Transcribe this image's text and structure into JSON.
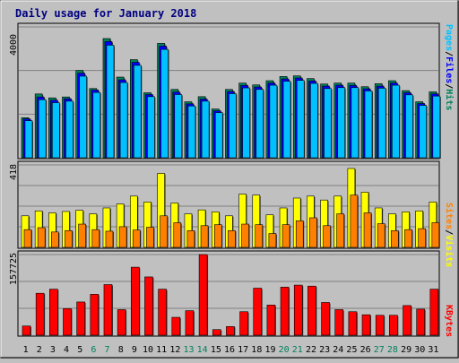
{
  "title": "Daily usage for January 2018",
  "colors": {
    "background": "#c0c0c0",
    "panel": "#c0c0c0",
    "title": "#000080",
    "hits": "#00805c",
    "files": "#0000ff",
    "pages": "#00c0ff",
    "visits": "#ffff00",
    "sites": "#ff8000",
    "kbytes": "#ff0000",
    "weekend_label": "#00805c",
    "weekday_label": "#000000"
  },
  "side_labels": {
    "top": {
      "pages": "Pages",
      "sep1": "/",
      "files": "Files",
      "sep2": "/",
      "hits": "Hits"
    },
    "middle": {
      "sites": "Sites",
      "sep": "/",
      "visits": "Visits"
    },
    "bottom": {
      "kbytes": "KBytes"
    }
  },
  "axis_max_labels": {
    "top": "4000",
    "middle": "418",
    "bottom": "157725"
  },
  "chart_data": [
    {
      "type": "bar",
      "panel": "hits-files-pages",
      "categories": [
        "1",
        "2",
        "3",
        "4",
        "5",
        "6",
        "7",
        "8",
        "9",
        "10",
        "11",
        "12",
        "13",
        "14",
        "15",
        "16",
        "17",
        "18",
        "19",
        "20",
        "21",
        "22",
        "23",
        "24",
        "25",
        "26",
        "27",
        "28",
        "29",
        "30",
        "31"
      ],
      "ylim": [
        0,
        4000
      ],
      "tick_labels": [
        "4000"
      ],
      "series": [
        {
          "name": "Hits",
          "values": [
            1330,
            2120,
            1990,
            2020,
            2900,
            2300,
            3960,
            2680,
            3260,
            2160,
            3800,
            2270,
            1860,
            2030,
            1620,
            2270,
            2480,
            2420,
            2560,
            2700,
            2720,
            2630,
            2450,
            2480,
            2480,
            2360,
            2460,
            2560,
            2230,
            1860,
            2190
          ]
        },
        {
          "name": "Files",
          "values": [
            1290,
            2020,
            1910,
            1960,
            2810,
            2250,
            3860,
            2590,
            3170,
            2100,
            3710,
            2180,
            1790,
            1950,
            1560,
            2200,
            2400,
            2350,
            2480,
            2620,
            2650,
            2550,
            2380,
            2410,
            2400,
            2290,
            2380,
            2480,
            2160,
            1800,
            2120
          ]
        },
        {
          "name": "Pages",
          "values": [
            1230,
            1930,
            1830,
            1880,
            2710,
            2170,
            3740,
            2500,
            3070,
            2030,
            3600,
            2100,
            1720,
            1880,
            1500,
            2130,
            2320,
            2270,
            2410,
            2540,
            2570,
            2470,
            2300,
            2330,
            2330,
            2220,
            2310,
            2410,
            2090,
            1740,
            2050
          ]
        }
      ]
    },
    {
      "type": "bar",
      "panel": "visits-sites",
      "categories": [
        "1",
        "2",
        "3",
        "4",
        "5",
        "6",
        "7",
        "8",
        "9",
        "10",
        "11",
        "12",
        "13",
        "14",
        "15",
        "16",
        "17",
        "18",
        "19",
        "20",
        "21",
        "22",
        "23",
        "24",
        "25",
        "26",
        "27",
        "28",
        "29",
        "30",
        "31"
      ],
      "ylim": [
        0,
        418
      ],
      "tick_labels": [
        "418"
      ],
      "series": [
        {
          "name": "Visits",
          "values": [
            160,
            185,
            175,
            182,
            188,
            170,
            200,
            220,
            260,
            230,
            375,
            225,
            170,
            190,
            180,
            160,
            270,
            265,
            165,
            200,
            250,
            260,
            240,
            260,
            400,
            280,
            200,
            170,
            180,
            185,
            230
          ]
        },
        {
          "name": "Sites",
          "values": [
            90,
            100,
            78,
            85,
            118,
            90,
            82,
            105,
            88,
            102,
            160,
            125,
            85,
            110,
            115,
            85,
            118,
            115,
            70,
            115,
            135,
            150,
            110,
            170,
            265,
            175,
            120,
            85,
            90,
            95,
            125
          ]
        }
      ]
    },
    {
      "type": "bar",
      "panel": "kbytes",
      "categories": [
        "1",
        "2",
        "3",
        "4",
        "5",
        "6",
        "7",
        "8",
        "9",
        "10",
        "11",
        "12",
        "13",
        "14",
        "15",
        "16",
        "17",
        "18",
        "19",
        "20",
        "21",
        "22",
        "23",
        "24",
        "25",
        "26",
        "27",
        "28",
        "29",
        "30",
        "31"
      ],
      "ylim": [
        0,
        157725
      ],
      "tick_labels": [
        "157725"
      ],
      "series": [
        {
          "name": "KBytes",
          "values": [
            18000,
            82000,
            90000,
            52000,
            65000,
            80000,
            99000,
            50000,
            133000,
            114000,
            90000,
            35000,
            48000,
            157725,
            11000,
            17000,
            46000,
            92000,
            59000,
            94000,
            98000,
            96000,
            64000,
            50000,
            46000,
            40000,
            39000,
            39000,
            58000,
            51000,
            90000
          ]
        }
      ]
    }
  ],
  "x_labels": [
    {
      "text": "1",
      "weekend": false
    },
    {
      "text": "2",
      "weekend": false
    },
    {
      "text": "3",
      "weekend": false
    },
    {
      "text": "4",
      "weekend": false
    },
    {
      "text": "5",
      "weekend": false
    },
    {
      "text": "6",
      "weekend": true
    },
    {
      "text": "7",
      "weekend": true
    },
    {
      "text": "8",
      "weekend": false
    },
    {
      "text": "9",
      "weekend": false
    },
    {
      "text": "10",
      "weekend": false
    },
    {
      "text": "11",
      "weekend": false
    },
    {
      "text": "12",
      "weekend": false
    },
    {
      "text": "13",
      "weekend": true
    },
    {
      "text": "14",
      "weekend": true
    },
    {
      "text": "15",
      "weekend": false
    },
    {
      "text": "16",
      "weekend": false
    },
    {
      "text": "17",
      "weekend": false
    },
    {
      "text": "18",
      "weekend": false
    },
    {
      "text": "19",
      "weekend": false
    },
    {
      "text": "20",
      "weekend": true
    },
    {
      "text": "21",
      "weekend": true
    },
    {
      "text": "22",
      "weekend": false
    },
    {
      "text": "23",
      "weekend": false
    },
    {
      "text": "24",
      "weekend": false
    },
    {
      "text": "25",
      "weekend": false
    },
    {
      "text": "26",
      "weekend": false
    },
    {
      "text": "27",
      "weekend": true
    },
    {
      "text": "28",
      "weekend": true
    },
    {
      "text": "29",
      "weekend": false
    },
    {
      "text": "30",
      "weekend": false
    },
    {
      "text": "31",
      "weekend": false
    }
  ]
}
